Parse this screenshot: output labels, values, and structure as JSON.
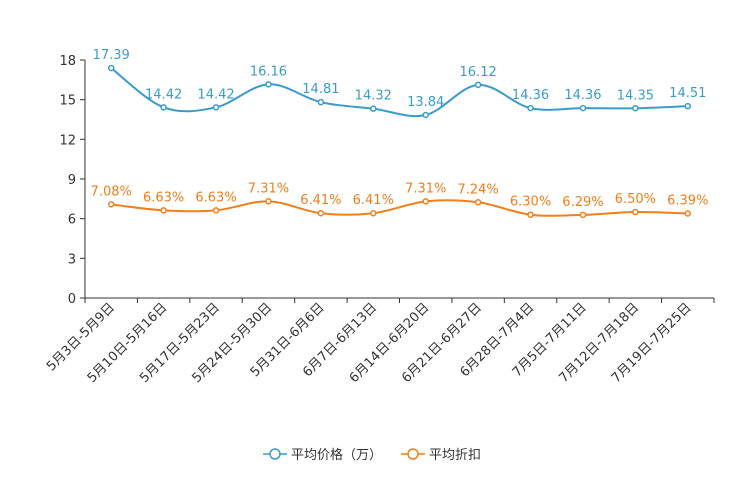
{
  "chart_data": {
    "type": "line",
    "title": "",
    "xlabel": "",
    "ylabel": "",
    "ylim": [
      0,
      18
    ],
    "yticks": [
      0,
      3,
      6,
      9,
      12,
      15,
      18
    ],
    "categories": [
      "5月3日-5月9日",
      "5月10日-5月16日",
      "5月17日-5月23日",
      "5月24日-5月30日",
      "5月31日-6月6日",
      "6月7日-6月13日",
      "6月14日-6月20日",
      "6月21日-6月27日",
      "6月28日-7月4日",
      "7月5日-7月11日",
      "7月12日-7月18日",
      "7月19日-7月25日"
    ],
    "series": [
      {
        "name": "平均价格（万）",
        "color": "#3a9cca",
        "values": [
          17.39,
          14.42,
          14.42,
          16.16,
          14.81,
          14.32,
          13.84,
          16.12,
          14.36,
          14.36,
          14.35,
          14.51
        ],
        "labels": [
          "17.39",
          "14.42",
          "14.42",
          "16.16",
          "14.81",
          "14.32",
          "13.84",
          "16.12",
          "14.36",
          "14.36",
          "14.35",
          "14.51"
        ]
      },
      {
        "name": "平均折扣",
        "color": "#f07f1c",
        "values": [
          7.08,
          6.63,
          6.63,
          7.31,
          6.41,
          6.41,
          7.31,
          7.24,
          6.3,
          6.29,
          6.5,
          6.39
        ],
        "labels": [
          "7.08%",
          "6.63%",
          "6.63%",
          "7.31%",
          "6.41%",
          "6.41%",
          "7.31%",
          "7.24%",
          "6.30%",
          "6.29%",
          "6.50%",
          "6.39%"
        ]
      }
    ],
    "legend_position": "bottom"
  }
}
